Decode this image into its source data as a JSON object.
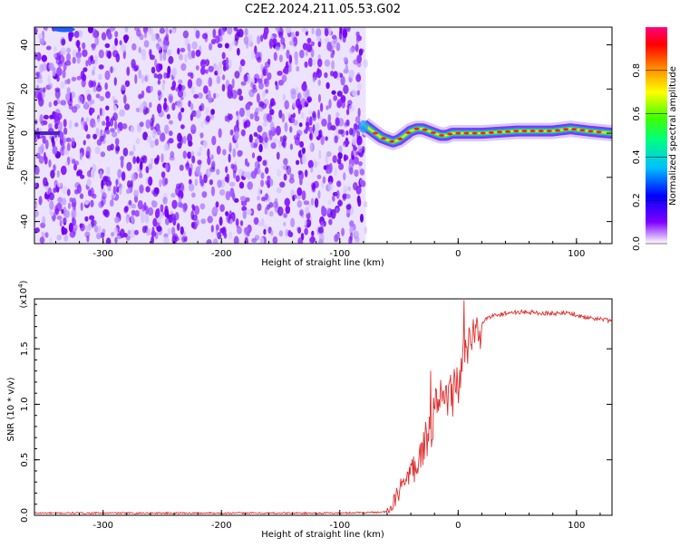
{
  "title": "C2E2.2024.211.05.53.G02",
  "colors": {
    "line": "#e03030",
    "axis": "#000000",
    "colormap": [
      "#e8e0ff",
      "#7f00ff",
      "#0000ff",
      "#00bfff",
      "#00ff80",
      "#80ff00",
      "#ffff00",
      "#ff8000",
      "#ff0000",
      "#ff0080"
    ]
  },
  "chart_data": [
    {
      "type": "heatmap",
      "title": "",
      "xlabel": "Height of straight line (km)",
      "ylabel": "Frequency (Hz)",
      "xlim": [
        -358,
        130
      ],
      "ylim": [
        -50,
        48
      ],
      "x_ticks": [
        -300,
        -200,
        -100,
        0,
        100
      ],
      "y_ticks": [
        -40,
        -20,
        0,
        20,
        40
      ],
      "colorbar": {
        "label": "Normalized spectral amplitude",
        "range": [
          0.0,
          1.0
        ],
        "ticks": [
          "0.0",
          "0.2",
          "0.4",
          "0.6",
          "0.8"
        ],
        "tick_values": [
          0.0,
          0.2,
          0.4,
          0.6,
          0.8
        ]
      },
      "noise_region_x": [
        -358,
        -78
      ],
      "tone_track": {
        "x": [
          -80,
          -75,
          -70,
          -65,
          -60,
          -55,
          -50,
          -45,
          -40,
          -35,
          -30,
          -25,
          -20,
          -15,
          -10,
          -5,
          0,
          20,
          50,
          80,
          95,
          110,
          130
        ],
        "freq": [
          4,
          2,
          0,
          -2,
          -3,
          -4,
          -3,
          -1,
          1,
          2,
          2,
          1,
          0,
          -1,
          -1,
          0,
          0,
          0,
          1,
          1,
          2,
          1,
          0
        ],
        "amplitude": [
          0.4,
          0.5,
          0.6,
          0.7,
          0.8,
          0.8,
          0.8,
          0.75,
          0.8,
          0.8,
          0.8,
          0.8,
          0.8,
          0.8,
          0.85,
          0.85,
          0.9,
          0.9,
          0.9,
          0.9,
          0.95,
          0.9,
          0.9
        ]
      }
    },
    {
      "type": "line",
      "title": "",
      "xlabel": "Height of straight line (km)",
      "ylabel": "SNR (10 * v/v)",
      "y_multiplier": "(x10",
      "y_multiplier_exp": "4",
      "y_multiplier_close": ")",
      "xlim": [
        -358,
        130
      ],
      "ylim": [
        0,
        1.95
      ],
      "x_ticks": [
        -300,
        -200,
        -100,
        0,
        100
      ],
      "y_ticks": [
        0.0,
        0.5,
        1.0,
        1.5
      ],
      "y_tick_labels": [
        "0.0",
        "0.5",
        "1.0",
        "1.5"
      ],
      "x": [
        -358,
        -300,
        -200,
        -100,
        -60,
        -55,
        -50,
        -45,
        -40,
        -35,
        -30,
        -25,
        -20,
        -15,
        -10,
        -5,
        0,
        5,
        10,
        15,
        20,
        25,
        30,
        40,
        50,
        60,
        70,
        80,
        90,
        100,
        110,
        120,
        130
      ],
      "y": [
        0.02,
        0.02,
        0.02,
        0.02,
        0.03,
        0.1,
        0.22,
        0.3,
        0.38,
        0.48,
        0.6,
        0.75,
        0.9,
        1.0,
        1.05,
        1.1,
        1.2,
        1.4,
        1.55,
        1.65,
        1.72,
        1.78,
        1.8,
        1.82,
        1.83,
        1.83,
        1.82,
        1.82,
        1.82,
        1.8,
        1.78,
        1.77,
        1.75
      ]
    }
  ],
  "x_tick_labels": [
    "-300",
    "-200",
    "-100",
    "0",
    "100"
  ],
  "y1_tick_labels": [
    "-40",
    "-20",
    "0",
    "20",
    "40"
  ]
}
